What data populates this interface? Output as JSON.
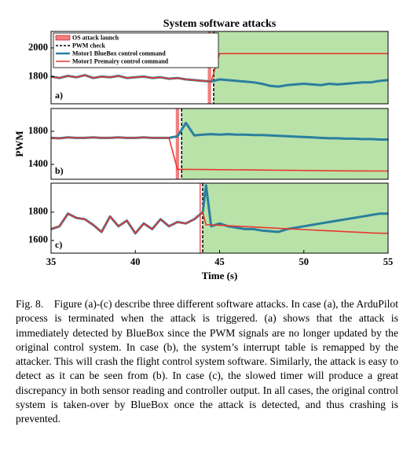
{
  "chart_data": [
    {
      "type": "line",
      "title": "System software attacks",
      "panel_label": "a)",
      "x": [
        35,
        35.5,
        36,
        36.5,
        37,
        37.5,
        38,
        38.5,
        39,
        39.5,
        40,
        40.5,
        41,
        41.5,
        42,
        42.5,
        43,
        43.5,
        44,
        44.5,
        45,
        45.5,
        46,
        46.5,
        47,
        47.5,
        48,
        48.5,
        49,
        49.5,
        50,
        50.5,
        51,
        51.5,
        52,
        52.5,
        53,
        53.5,
        54,
        54.5,
        55
      ],
      "xlim": [
        35,
        55
      ],
      "ylim": [
        1610,
        2115
      ],
      "yticks": [
        1800,
        2000
      ],
      "markers": [
        {
          "name": "OS attack launch",
          "span": [
            44.3,
            44.5
          ],
          "color": "#f08080"
        },
        {
          "name": "PWM check",
          "x": 44.65,
          "color": "#000000"
        }
      ],
      "shade_color": "#b9e2a8",
      "series": [
        {
          "name": "Motor1 BlueBox control command",
          "color": "#2a7f9e",
          "values": [
            1800,
            1790,
            1805,
            1795,
            1810,
            1790,
            1800,
            1795,
            1805,
            1790,
            1795,
            1800,
            1790,
            1795,
            1785,
            1790,
            1780,
            1775,
            1770,
            1765,
            1780,
            1775,
            1770,
            1765,
            1760,
            1750,
            1735,
            1730,
            1740,
            1745,
            1750,
            1745,
            1740,
            1750,
            1745,
            1750,
            1755,
            1760,
            1760,
            1770,
            1775
          ]
        },
        {
          "name": "Motor1 Premairy control command",
          "color": "#e8382f",
          "values": [
            1800,
            1790,
            1805,
            1795,
            1810,
            1790,
            1800,
            1795,
            1805,
            1790,
            1795,
            1800,
            1790,
            1795,
            1785,
            1790,
            1780,
            1775,
            1770,
            1765,
            1960,
            1960,
            1960,
            1960,
            1960,
            1960,
            1960,
            1960,
            1960,
            1960,
            1960,
            1960,
            1960,
            1960,
            1960,
            1960,
            1960,
            1960,
            1960,
            1960,
            1960
          ]
        }
      ]
    },
    {
      "type": "line",
      "panel_label": "b)",
      "ylabel": "PWM",
      "x": [
        35,
        35.5,
        36,
        36.5,
        37,
        37.5,
        38,
        38.5,
        39,
        39.5,
        40,
        40.5,
        41,
        41.5,
        42,
        42.5,
        43,
        43.5,
        44,
        44.5,
        45,
        45.5,
        46,
        46.5,
        47,
        47.5,
        48,
        48.5,
        49,
        49.5,
        50,
        50.5,
        51,
        51.5,
        52,
        52.5,
        53,
        53.5,
        54,
        54.5,
        55
      ],
      "xlim": [
        35,
        55
      ],
      "ylim": [
        1220,
        2075
      ],
      "yticks": [
        1400,
        1800
      ],
      "markers": [
        {
          "span": [
            42.4,
            42.6
          ],
          "color": "#f08080"
        },
        {
          "x": 42.75,
          "color": "#000000"
        }
      ],
      "shade_color": "#b9e2a8",
      "series": [
        {
          "color": "#2a7f9e",
          "values": [
            1720,
            1715,
            1725,
            1720,
            1720,
            1725,
            1720,
            1720,
            1725,
            1720,
            1720,
            1725,
            1720,
            1720,
            1720,
            1740,
            1900,
            1750,
            1760,
            1765,
            1760,
            1765,
            1760,
            1760,
            1755,
            1755,
            1750,
            1745,
            1740,
            1735,
            1730,
            1725,
            1720,
            1715,
            1715,
            1710,
            1710,
            1705,
            1705,
            1700,
            1700
          ]
        },
        {
          "color": "#e8382f",
          "values": [
            1720,
            1715,
            1725,
            1720,
            1720,
            1725,
            1720,
            1720,
            1725,
            1720,
            1720,
            1725,
            1720,
            1720,
            1720,
            1340,
            1340,
            1339,
            1338,
            1337,
            1336,
            1335,
            1334,
            1333,
            1332,
            1331,
            1330,
            1329,
            1328,
            1327,
            1326,
            1325,
            1324,
            1323,
            1322,
            1322,
            1321,
            1321,
            1320,
            1320,
            1320
          ]
        }
      ]
    },
    {
      "type": "line",
      "panel_label": "c)",
      "xlabel": "Time (s)",
      "x": [
        35,
        35.5,
        36,
        36.5,
        37,
        37.5,
        38,
        38.5,
        39,
        39.5,
        40,
        40.5,
        41,
        41.5,
        42,
        42.5,
        43,
        43.5,
        44,
        44.2,
        44.5,
        45,
        45.5,
        46,
        46.5,
        47,
        47.5,
        48,
        48.5,
        49,
        49.5,
        50,
        50.5,
        51,
        51.5,
        52,
        52.5,
        53,
        53.5,
        54,
        54.5,
        55
      ],
      "xlim": [
        35,
        55
      ],
      "xticks": [
        35,
        40,
        45,
        50,
        55
      ],
      "ylim": [
        1510,
        2005
      ],
      "yticks": [
        1600,
        1800
      ],
      "markers": [
        {
          "span": [
            43.8,
            43.9
          ],
          "color": "#f08080"
        },
        {
          "x": 44.0,
          "color": "#000000"
        }
      ],
      "shade_color": "#b9e2a8",
      "series": [
        {
          "color": "#2a7f9e",
          "values": [
            1680,
            1700,
            1790,
            1760,
            1750,
            1710,
            1660,
            1770,
            1700,
            1740,
            1650,
            1720,
            1680,
            1750,
            1700,
            1730,
            1720,
            1750,
            1800,
            1990,
            1700,
            1720,
            1700,
            1690,
            1680,
            1680,
            1670,
            1665,
            1660,
            1680,
            1690,
            1700,
            1710,
            1720,
            1730,
            1740,
            1750,
            1760,
            1770,
            1780,
            1790,
            1790
          ]
        },
        {
          "color": "#e8382f",
          "values": [
            1680,
            1700,
            1790,
            1760,
            1750,
            1710,
            1660,
            1770,
            1700,
            1740,
            1650,
            1720,
            1680,
            1750,
            1700,
            1730,
            1720,
            1750,
            1800,
            1710,
            1710,
            1707,
            1704,
            1701,
            1698,
            1695,
            1692,
            1689,
            1686,
            1683,
            1680,
            1677,
            1674,
            1671,
            1668,
            1665,
            1662,
            1659,
            1656,
            1653,
            1651,
            1650
          ]
        }
      ]
    }
  ],
  "caption": "Fig. 8. Figure (a)-(c) describe three different software attacks. In case (a), the ArduPilot process is terminated when the attack is triggered. (a) shows that the attack is immediately detected by BlueBox since the PWM signals are no longer updated by the original control system. In case (b), the system’s interrupt table is remapped by the attacker. This will crash the flight control system software. Similarly, the attack is easy to detect as it can be seen from (b). In case (c), the slowed timer will produce a great discrepancy in both sensor reading and controller output. In all cases, the original control system is taken-over by BlueBox once the attack is detected, and thus crashing is prevented."
}
